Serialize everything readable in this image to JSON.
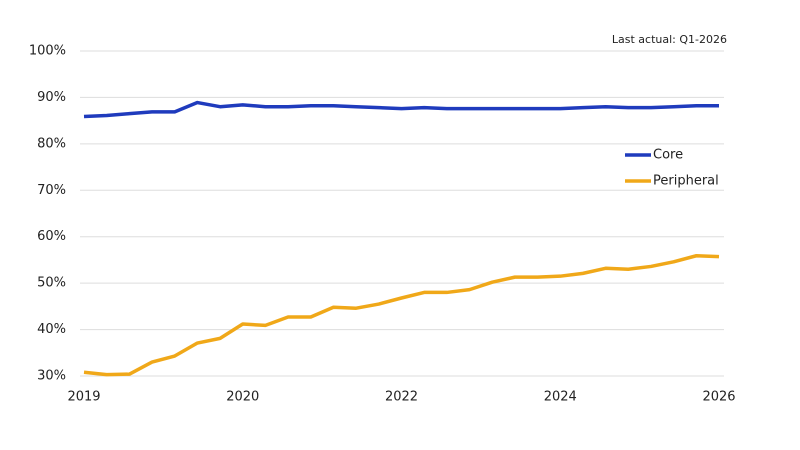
{
  "chart_data": {
    "type": "line",
    "annotation": "Last actual: Q1-2026",
    "categories": [
      "2019",
      null,
      null,
      null,
      null,
      null,
      null,
      "2020",
      null,
      null,
      null,
      null,
      null,
      null,
      "2022",
      null,
      null,
      null,
      null,
      null,
      null,
      "2024",
      null,
      null,
      null,
      null,
      null,
      null,
      "2026"
    ],
    "series": [
      {
        "name": "Core",
        "color": "#1f3bbd",
        "values": [
          85.9,
          86.1,
          86.5,
          86.9,
          86.9,
          88.9,
          88.0,
          88.4,
          88.0,
          88.0,
          88.2,
          88.2,
          88.0,
          87.8,
          87.6,
          87.8,
          87.6,
          87.6,
          87.6,
          87.6,
          87.6,
          87.6,
          87.8,
          88.0,
          87.8,
          87.8,
          88.0,
          88.2,
          88.2
        ]
      },
      {
        "name": "Peripheral",
        "color": "#f0a819",
        "values": [
          30.8,
          30.3,
          30.4,
          33.0,
          34.3,
          37.1,
          38.1,
          41.2,
          40.9,
          42.7,
          42.7,
          44.8,
          44.6,
          45.5,
          46.8,
          48.0,
          48.0,
          48.6,
          50.2,
          51.3,
          51.3,
          51.5,
          52.1,
          53.2,
          53.0,
          53.6,
          54.6,
          55.9,
          55.7
        ]
      }
    ],
    "ylim": [
      30,
      100
    ],
    "yticks": [
      {
        "value": 30,
        "label": "30%"
      },
      {
        "value": 40,
        "label": "40%"
      },
      {
        "value": 50,
        "label": "50%"
      },
      {
        "value": 60,
        "label": "60%"
      },
      {
        "value": 70,
        "label": "70%"
      },
      {
        "value": 80,
        "label": "80%"
      },
      {
        "value": 90,
        "label": "90%"
      },
      {
        "value": 100,
        "label": "100%"
      }
    ],
    "grid": true
  }
}
